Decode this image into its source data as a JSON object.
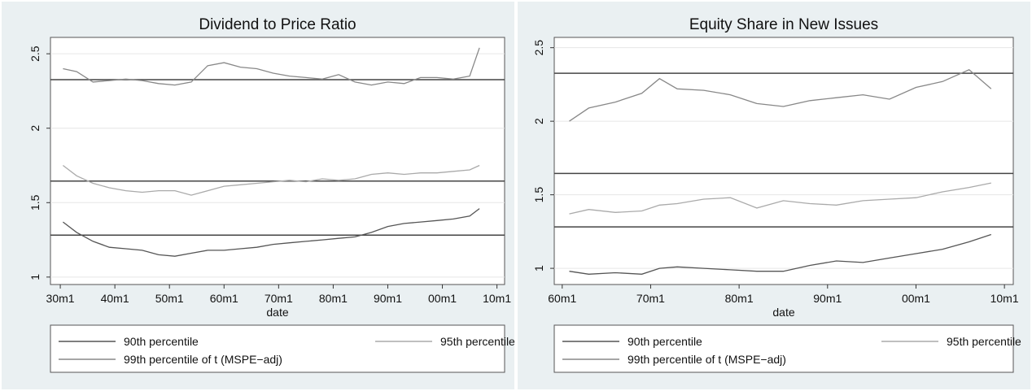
{
  "chart_data": [
    {
      "type": "line",
      "title": "Dividend to Price Ratio",
      "xlabel": "date",
      "x": [
        1930.5,
        1933,
        1936,
        1939,
        1942,
        1945,
        1948,
        1951,
        1954,
        1957,
        1960,
        1963,
        1966,
        1969,
        1972,
        1975,
        1978,
        1981,
        1984,
        1987,
        1990,
        1993,
        1996,
        1999,
        2002,
        2005,
        2006.8
      ],
      "series": [
        {
          "name": "90th percentile",
          "color": "#555555",
          "values": [
            1.37,
            1.3,
            1.24,
            1.2,
            1.19,
            1.18,
            1.15,
            1.14,
            1.16,
            1.18,
            1.18,
            1.19,
            1.2,
            1.22,
            1.23,
            1.24,
            1.25,
            1.26,
            1.27,
            1.3,
            1.34,
            1.36,
            1.37,
            1.38,
            1.39,
            1.41,
            1.46
          ]
        },
        {
          "name": "95th percentile",
          "color": "#aaaaaa",
          "values": [
            1.75,
            1.68,
            1.63,
            1.6,
            1.58,
            1.57,
            1.58,
            1.58,
            1.55,
            1.58,
            1.61,
            1.62,
            1.63,
            1.64,
            1.65,
            1.64,
            1.66,
            1.65,
            1.66,
            1.69,
            1.7,
            1.69,
            1.7,
            1.7,
            1.71,
            1.72,
            1.75
          ]
        },
        {
          "name": "99th percentile of t (MSPE−adj)",
          "color": "#888888",
          "values": [
            2.4,
            2.38,
            2.31,
            2.32,
            2.33,
            2.32,
            2.3,
            2.29,
            2.31,
            2.42,
            2.44,
            2.41,
            2.4,
            2.37,
            2.35,
            2.34,
            2.33,
            2.36,
            2.31,
            2.29,
            2.31,
            2.3,
            2.34,
            2.34,
            2.33,
            2.35,
            2.54
          ]
        }
      ],
      "reference_lines": [
        1.282,
        1.645,
        2.326
      ],
      "reference_color": "#444444",
      "xlim": [
        1928.2,
        2011.4
      ],
      "ylim": [
        0.95,
        2.61
      ],
      "xticks": [
        {
          "value": 1930,
          "label": "30m1"
        },
        {
          "value": 1940,
          "label": "40m1"
        },
        {
          "value": 1950,
          "label": "50m1"
        },
        {
          "value": 1960,
          "label": "60m1"
        },
        {
          "value": 1970,
          "label": "70m1"
        },
        {
          "value": 1980,
          "label": "80m1"
        },
        {
          "value": 1990,
          "label": "90m1"
        },
        {
          "value": 2000,
          "label": "00m1"
        },
        {
          "value": 2010,
          "label": "10m1"
        }
      ],
      "yticks": [
        1,
        1.5,
        2,
        2.5
      ],
      "grid": true
    },
    {
      "type": "line",
      "title": "Equity Share in New Issues",
      "xlabel": "date",
      "x": [
        1960.8,
        1963,
        1966,
        1969,
        1971,
        1973,
        1976,
        1979,
        1982,
        1985,
        1988,
        1991,
        1994,
        1997,
        2000,
        2003,
        2006,
        2008.5
      ],
      "series": [
        {
          "name": "90th percentile",
          "color": "#555555",
          "values": [
            0.98,
            0.96,
            0.97,
            0.96,
            1.0,
            1.01,
            1.0,
            0.99,
            0.98,
            0.98,
            1.02,
            1.05,
            1.04,
            1.07,
            1.1,
            1.13,
            1.18,
            1.23
          ]
        },
        {
          "name": "95th percentile",
          "color": "#aaaaaa",
          "values": [
            1.37,
            1.4,
            1.38,
            1.39,
            1.43,
            1.44,
            1.47,
            1.48,
            1.41,
            1.46,
            1.44,
            1.43,
            1.46,
            1.47,
            1.48,
            1.52,
            1.55,
            1.58
          ]
        },
        {
          "name": "99th percentile of t (MSPE−adj)",
          "color": "#888888",
          "values": [
            2.0,
            2.09,
            2.13,
            2.19,
            2.29,
            2.22,
            2.21,
            2.18,
            2.12,
            2.1,
            2.14,
            2.16,
            2.18,
            2.15,
            2.23,
            2.27,
            2.35,
            2.22
          ]
        }
      ],
      "reference_lines": [
        1.282,
        1.645,
        2.326
      ],
      "reference_color": "#444444",
      "xlim": [
        1959.1,
        2011.0
      ],
      "ylim": [
        0.89,
        2.57
      ],
      "xticks": [
        {
          "value": 1960,
          "label": "60m1"
        },
        {
          "value": 1970,
          "label": "70m1"
        },
        {
          "value": 1980,
          "label": "80m1"
        },
        {
          "value": 1990,
          "label": "90m1"
        },
        {
          "value": 2000,
          "label": "00m1"
        },
        {
          "value": 2010,
          "label": "10m1"
        }
      ],
      "yticks": [
        1,
        1.5,
        2,
        2.5
      ],
      "grid": true
    }
  ]
}
